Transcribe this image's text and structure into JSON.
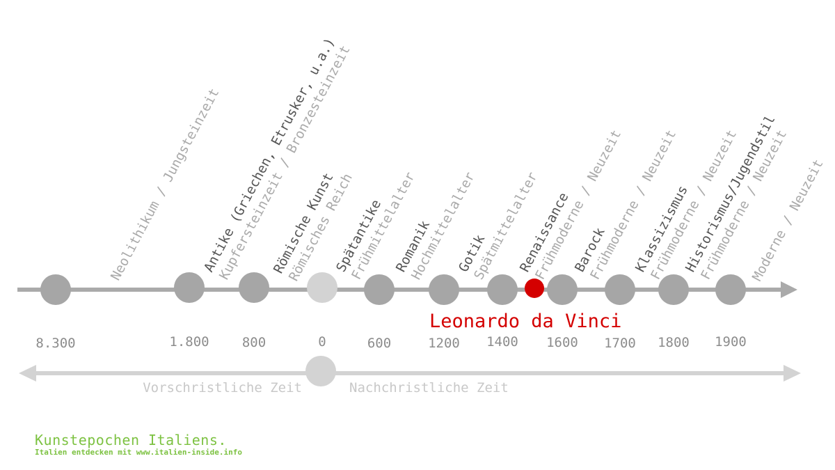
{
  "epochs": [
    {
      "name": "",
      "era": "Neolithikum / Jungsteinzeit",
      "year": "8.300"
    },
    {
      "name": "Antike (Griechen, Etrusker, u.a.)",
      "era": "Kupfersteinzeit / Bronzesteinzeit",
      "year": "1.800"
    },
    {
      "name": "Römische Kunst",
      "era": "Römisches Reich",
      "year": "800"
    },
    {
      "name": "",
      "era": "",
      "year": "0"
    },
    {
      "name": "Spätantike",
      "era": "Frühmittelalter",
      "year": "600"
    },
    {
      "name": "Romanik",
      "era": "Hochmittelalter",
      "year": "1200"
    },
    {
      "name": "Gotik",
      "era": "Spätmittelalter",
      "year": "1400"
    },
    {
      "name": "Renaissance",
      "era": "Frühmoderne / Neuzeit",
      "year": "1600"
    },
    {
      "name": "Barock",
      "era": "Frühmoderne / Neuzeit",
      "year": "1700"
    },
    {
      "name": "Klassizismus",
      "era": "Frühmoderne / Neuzeit",
      "year": "1800"
    },
    {
      "name": "Historismus/Jugendstil",
      "era": "Frühmoderne / Neuzeit",
      "year": "1900"
    },
    {
      "name": "",
      "era": "Moderne / Neuzeit",
      "year": ""
    }
  ],
  "highlight": {
    "label": "Leonardo da Vinci"
  },
  "eras": {
    "before": "Vorschristliche Zeit",
    "after": "Nachchristliche Zeit"
  },
  "footer": {
    "title": "Kunstepochen Italiens.",
    "subtitle": "Italien entdecken mit www.italien-inside.info"
  },
  "colors": {
    "line": "#aaaaaa",
    "node": "#a6a6a6",
    "zero_node": "#d3d3d3",
    "era_line": "#d3d3d3",
    "highlight": "#d40000",
    "footer": "#7dc242"
  }
}
